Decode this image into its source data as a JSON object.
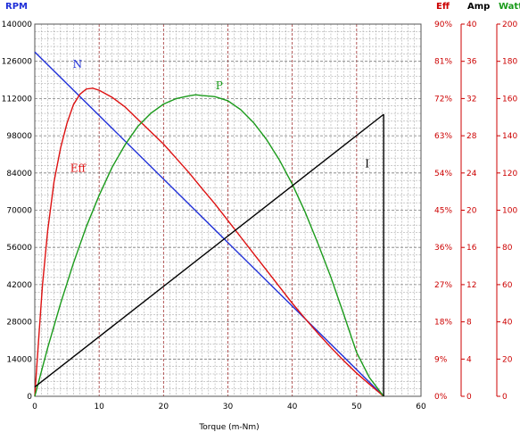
{
  "chart_data": {
    "type": "line",
    "xlabel": "Torque (m-Nm)",
    "xlim": [
      0,
      60
    ],
    "x_ticks": [
      "0",
      "10",
      "20",
      "30",
      "40",
      "50",
      "60"
    ],
    "axes": {
      "rpm": {
        "label": "RPM",
        "ylim": [
          0,
          140000
        ],
        "ticks": [
          "0",
          "14000",
          "28000",
          "42000",
          "56000",
          "70000",
          "84000",
          "98000",
          "112000",
          "126000",
          "140000"
        ],
        "color": "#1f2fd8"
      },
      "eff": {
        "label": "Eff",
        "ylim": [
          0,
          90
        ],
        "ticks": [
          "0%",
          "9%",
          "18%",
          "27%",
          "36%",
          "45%",
          "54%",
          "63%",
          "72%",
          "81%",
          "90%"
        ],
        "color": "#cc0000"
      },
      "amp": {
        "label": "Amp",
        "ylim": [
          0,
          40
        ],
        "ticks": [
          "0",
          "4",
          "8",
          "12",
          "16",
          "20",
          "24",
          "28",
          "32",
          "36",
          "40"
        ],
        "color": "#000000"
      },
      "watt": {
        "label": "Watt",
        "ylim": [
          0,
          200
        ],
        "ticks": [
          "0",
          "20",
          "40",
          "60",
          "80",
          "100",
          "120",
          "140",
          "160",
          "180",
          "200"
        ],
        "color": "#1a9a1a"
      }
    },
    "series": [
      {
        "name": "N",
        "axis": "rpm",
        "color": "#1f2fd8",
        "points": [
          [
            0,
            129500
          ],
          [
            54.2,
            0
          ]
        ]
      },
      {
        "name": "Eff",
        "axis": "eff",
        "color": "#dd1111",
        "points": [
          [
            0,
            0
          ],
          [
            0.3,
            7
          ],
          [
            0.7,
            16
          ],
          [
            1.2,
            27
          ],
          [
            2,
            40
          ],
          [
            3,
            52
          ],
          [
            4,
            60
          ],
          [
            5,
            66
          ],
          [
            6,
            70.5
          ],
          [
            7,
            73
          ],
          [
            8,
            74.3
          ],
          [
            9,
            74.5
          ],
          [
            10,
            74
          ],
          [
            12,
            72.3
          ],
          [
            14,
            70
          ],
          [
            16,
            67
          ],
          [
            18,
            64
          ],
          [
            20,
            61
          ],
          [
            22,
            57.5
          ],
          [
            24,
            54
          ],
          [
            26,
            50.2
          ],
          [
            28,
            46.5
          ],
          [
            30,
            42.5
          ],
          [
            32,
            38.5
          ],
          [
            34,
            34.5
          ],
          [
            36,
            30.5
          ],
          [
            38,
            26.5
          ],
          [
            40,
            22.5
          ],
          [
            42,
            18.8
          ],
          [
            44,
            15.2
          ],
          [
            46,
            11.8
          ],
          [
            48,
            8.6
          ],
          [
            50,
            5.6
          ],
          [
            52,
            2.9
          ],
          [
            54.2,
            0
          ]
        ]
      },
      {
        "name": "P",
        "axis": "watt",
        "color": "#1a9a1a",
        "points": [
          [
            0,
            0
          ],
          [
            2,
            26
          ],
          [
            4,
            49.8
          ],
          [
            6,
            71.5
          ],
          [
            8,
            91.1
          ],
          [
            10,
            108
          ],
          [
            12,
            123
          ],
          [
            14,
            135
          ],
          [
            16,
            145
          ],
          [
            18,
            152
          ],
          [
            20,
            157
          ],
          [
            22,
            160
          ],
          [
            24,
            161.5
          ],
          [
            25,
            162
          ],
          [
            26,
            161.6
          ],
          [
            27.1,
            161.3
          ],
          [
            28,
            161
          ],
          [
            30,
            158.8
          ],
          [
            32,
            154
          ],
          [
            34,
            147
          ],
          [
            36,
            138
          ],
          [
            38,
            127
          ],
          [
            40,
            114
          ],
          [
            42,
            99
          ],
          [
            44,
            82
          ],
          [
            46,
            64
          ],
          [
            48,
            44
          ],
          [
            50,
            23.5
          ],
          [
            52,
            10
          ],
          [
            54.2,
            0
          ]
        ]
      },
      {
        "name": "I",
        "axis": "amp",
        "color": "#000000",
        "points": [
          [
            0,
            1
          ],
          [
            54.2,
            30.3
          ]
        ]
      }
    ],
    "annotations": [
      {
        "text": "N",
        "x": 5.9,
        "y": 123500,
        "axis": "rpm",
        "color": "#1f2fd8"
      },
      {
        "text": "Eff",
        "x": 5.5,
        "y": 54.3,
        "axis": "eff",
        "color": "#dd1111"
      },
      {
        "text": "P",
        "x": 28.1,
        "y": 165,
        "axis": "watt",
        "color": "#1a9a1a"
      },
      {
        "text": "I",
        "x": 51.3,
        "y": 24.6,
        "axis": "amp",
        "color": "#000000"
      }
    ],
    "stall_torque": 54.2,
    "grid": true,
    "colors": {
      "minor_grid": "#9a9a9a",
      "major_grid": "#a03030",
      "eff_axis": "#cc0000",
      "amp_axis": "#cc0000",
      "watt_axis": "#cc0000"
    }
  }
}
